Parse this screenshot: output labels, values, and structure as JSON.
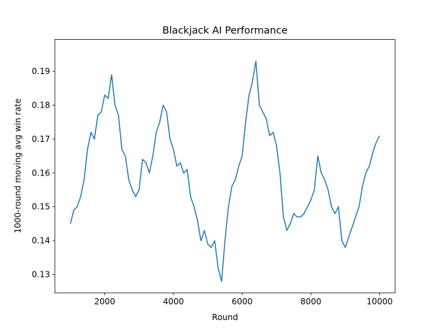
{
  "chart_data": {
    "type": "line",
    "title": "Blackjack AI Performance",
    "x_label": "Round",
    "y_label": "1000-round moving avg win rate",
    "x": [
      1000,
      1100,
      1200,
      1300,
      1400,
      1500,
      1600,
      1700,
      1800,
      1900,
      2000,
      2100,
      2200,
      2300,
      2400,
      2500,
      2600,
      2700,
      2800,
      2900,
      3000,
      3100,
      3200,
      3300,
      3400,
      3500,
      3600,
      3700,
      3800,
      3900,
      4000,
      4100,
      4200,
      4300,
      4400,
      4500,
      4600,
      4700,
      4800,
      4900,
      5000,
      5100,
      5200,
      5300,
      5400,
      5500,
      5600,
      5700,
      5800,
      5900,
      6000,
      6100,
      6200,
      6300,
      6400,
      6500,
      6600,
      6700,
      6800,
      6900,
      7000,
      7100,
      7200,
      7300,
      7400,
      7500,
      7600,
      7700,
      7800,
      7900,
      8000,
      8100,
      8200,
      8300,
      8400,
      8500,
      8600,
      8700,
      8800,
      8900,
      9000,
      9100,
      9200,
      9300,
      9400,
      9500,
      9600,
      9700,
      9800,
      9900,
      10000
    ],
    "series": [
      {
        "color": "#1f77b4",
        "values": [
          0.145,
          0.149,
          0.15,
          0.153,
          0.158,
          0.167,
          0.172,
          0.17,
          0.177,
          0.178,
          0.183,
          0.182,
          0.189,
          0.18,
          0.177,
          0.167,
          0.165,
          0.158,
          0.155,
          0.153,
          0.155,
          0.164,
          0.163,
          0.16,
          0.165,
          0.172,
          0.175,
          0.18,
          0.178,
          0.17,
          0.167,
          0.162,
          0.163,
          0.16,
          0.161,
          0.153,
          0.15,
          0.146,
          0.14,
          0.143,
          0.139,
          0.138,
          0.14,
          0.132,
          0.128,
          0.14,
          0.15,
          0.156,
          0.158,
          0.162,
          0.165,
          0.175,
          0.183,
          0.187,
          0.193,
          0.18,
          0.178,
          0.176,
          0.171,
          0.172,
          0.168,
          0.16,
          0.147,
          0.143,
          0.145,
          0.148,
          0.147,
          0.147,
          0.148,
          0.15,
          0.152,
          0.155,
          0.165,
          0.16,
          0.158,
          0.155,
          0.15,
          0.148,
          0.15,
          0.14,
          0.138,
          0.141,
          0.144,
          0.147,
          0.15,
          0.156,
          0.16,
          0.162,
          0.166,
          0.169,
          0.171
        ]
      }
    ],
    "xlim": [
      550,
      10450
    ],
    "ylim": [
      0.1246,
      0.1994
    ],
    "xticks": [
      2000,
      4000,
      6000,
      8000,
      10000
    ],
    "yticks": [
      0.13,
      0.14,
      0.15,
      0.16,
      0.17,
      0.18,
      0.19
    ]
  }
}
